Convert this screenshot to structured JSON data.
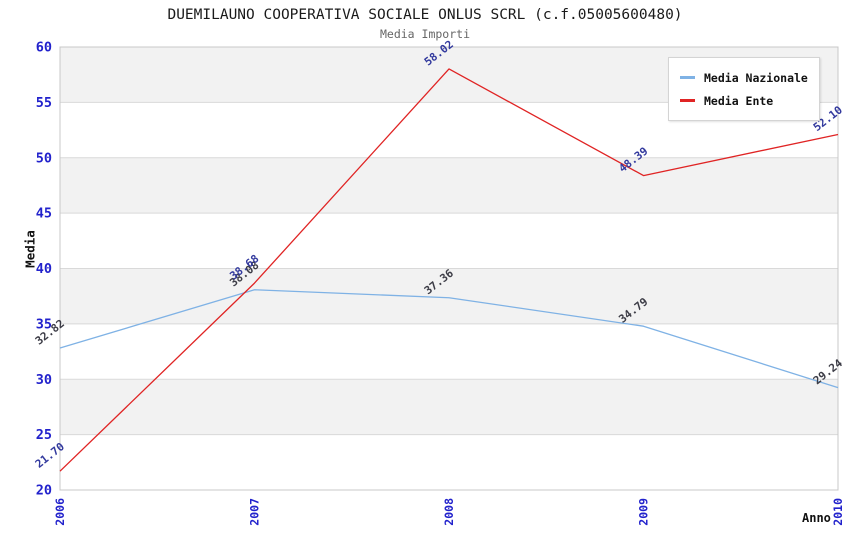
{
  "chart_data": {
    "type": "line",
    "title": "DUEMILAUNO COOPERATIVA SOCIALE ONLUS SCRL (c.f.05005600480)",
    "subtitle": "Media Importi",
    "xlabel": "Anno",
    "ylabel": "Media",
    "x_categories": [
      "2006",
      "2007",
      "2008",
      "2009",
      "2010"
    ],
    "ylim": [
      20,
      60
    ],
    "ytick_step": 5,
    "yticks": [
      20,
      25,
      30,
      35,
      40,
      45,
      50,
      55,
      60
    ],
    "grid": true,
    "banded_background": true,
    "legend_position": "top-right",
    "series": [
      {
        "name": "Media Nazionale",
        "color": "#7fb2e5",
        "label_color": "#3c3c46",
        "values": [
          32.82,
          38.08,
          37.36,
          34.79,
          29.24
        ],
        "labels": [
          "32.82",
          "38.08",
          "37.36",
          "34.79",
          "29.24"
        ]
      },
      {
        "name": "Media Ente",
        "color": "#e02424",
        "label_color": "#333a9e",
        "values": [
          21.7,
          38.68,
          58.02,
          48.39,
          52.1
        ],
        "labels": [
          "21.70",
          "38.68",
          "58.02",
          "48.39",
          "52.10"
        ]
      }
    ],
    "colors": {
      "axis_tick_text": "#2222cc",
      "title_text": "#1a1a1a",
      "subtitle_text": "#666666",
      "band": "#f2f2f2",
      "gridline": "#d9d9d9",
      "plot_border": "#c8c8c8",
      "background": "#ffffff",
      "legend_border": "#d4d4d4",
      "legend_text": "#111111"
    }
  }
}
